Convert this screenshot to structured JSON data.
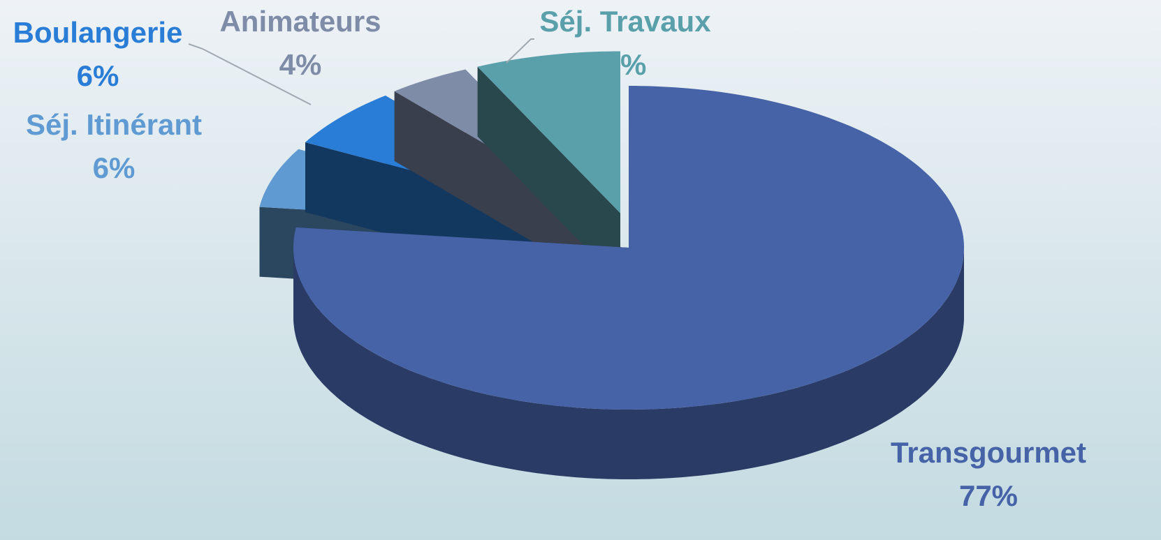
{
  "chart_data": {
    "type": "pie3d",
    "categories": [
      "Transgourmet",
      "Séj. Itinérant",
      "Boulangerie",
      "Animateurs",
      "Séj. Travaux"
    ],
    "values": [
      77,
      6,
      6,
      4,
      7
    ],
    "value_labels": [
      "77%",
      "6%",
      "6%",
      "4%",
      "7%"
    ],
    "colors": [
      "#4663a8",
      "#5f9bd2",
      "#2a7dd6",
      "#7f8ca8",
      "#5aa0ab"
    ]
  }
}
